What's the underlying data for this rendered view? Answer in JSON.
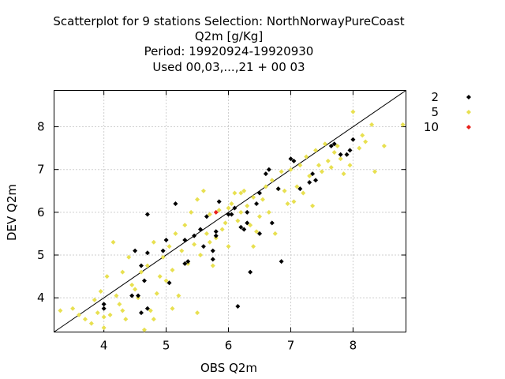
{
  "chart_data": {
    "type": "scatter",
    "title_lines": [
      "Scatterplot for    9 stations Selection: NorthNorwayPureCoast",
      "Q2m [g/Kg]",
      "Period: 19920924-19920930",
      "Used  00,03,...,21  + 00 03"
    ],
    "xlabel": "OBS Q2m",
    "ylabel": "DEV Q2m",
    "xlim": [
      3.2,
      8.85
    ],
    "ylim": [
      3.2,
      8.85
    ],
    "x_ticks": [
      "4",
      "5",
      "6",
      "7",
      "8"
    ],
    "y_ticks": [
      "4",
      "5",
      "6",
      "7",
      "8"
    ],
    "grid": true,
    "legend_position": "right",
    "reference_line": "y = x",
    "series": [
      {
        "name": "5",
        "color": "#e8e050",
        "points": [
          [
            3.3,
            3.7
          ],
          [
            3.5,
            3.75
          ],
          [
            3.6,
            3.6
          ],
          [
            3.7,
            3.5
          ],
          [
            3.8,
            3.4
          ],
          [
            3.85,
            3.95
          ],
          [
            3.9,
            3.65
          ],
          [
            3.95,
            4.15
          ],
          [
            4.0,
            3.3
          ],
          [
            4.0,
            3.55
          ],
          [
            4.05,
            4.5
          ],
          [
            4.1,
            3.6
          ],
          [
            4.15,
            5.3
          ],
          [
            4.2,
            4.05
          ],
          [
            4.25,
            3.85
          ],
          [
            4.3,
            3.7
          ],
          [
            4.35,
            3.5
          ],
          [
            4.4,
            4.95
          ],
          [
            4.45,
            4.3
          ],
          [
            4.5,
            4.2
          ],
          [
            4.55,
            4.0
          ],
          [
            4.6,
            4.6
          ],
          [
            4.65,
            3.25
          ],
          [
            4.7,
            4.75
          ],
          [
            4.75,
            3.7
          ],
          [
            4.8,
            5.3
          ],
          [
            4.85,
            4.1
          ],
          [
            4.9,
            4.5
          ],
          [
            4.95,
            4.95
          ],
          [
            5.0,
            4.4
          ],
          [
            5.05,
            5.2
          ],
          [
            5.1,
            4.65
          ],
          [
            5.15,
            5.5
          ],
          [
            5.2,
            4.05
          ],
          [
            5.25,
            5.1
          ],
          [
            5.3,
            5.7
          ],
          [
            5.35,
            4.8
          ],
          [
            5.4,
            6.0
          ],
          [
            5.45,
            5.25
          ],
          [
            5.5,
            6.3
          ],
          [
            5.55,
            5.0
          ],
          [
            5.6,
            6.5
          ],
          [
            5.65,
            5.5
          ],
          [
            5.7,
            5.95
          ],
          [
            5.75,
            4.75
          ],
          [
            5.8,
            5.4
          ],
          [
            5.85,
            6.05
          ],
          [
            5.9,
            5.6
          ],
          [
            5.95,
            5.75
          ],
          [
            6.0,
            6.1
          ],
          [
            6.05,
            6.2
          ],
          [
            6.1,
            6.45
          ],
          [
            6.15,
            5.8
          ],
          [
            6.2,
            6.0
          ],
          [
            6.25,
            6.5
          ],
          [
            6.3,
            6.15
          ],
          [
            6.35,
            5.7
          ],
          [
            6.4,
            6.35
          ],
          [
            6.45,
            5.55
          ],
          [
            6.5,
            5.9
          ],
          [
            6.55,
            6.3
          ],
          [
            6.6,
            6.6
          ],
          [
            6.65,
            6.0
          ],
          [
            6.7,
            6.75
          ],
          [
            6.75,
            5.5
          ],
          [
            6.8,
            6.55
          ],
          [
            6.85,
            6.95
          ],
          [
            6.9,
            6.5
          ],
          [
            6.95,
            6.2
          ],
          [
            7.0,
            7.0
          ],
          [
            7.05,
            6.25
          ],
          [
            7.1,
            6.6
          ],
          [
            7.15,
            7.1
          ],
          [
            7.2,
            6.45
          ],
          [
            7.25,
            7.3
          ],
          [
            7.3,
            6.85
          ],
          [
            7.35,
            6.15
          ],
          [
            7.4,
            7.45
          ],
          [
            7.45,
            7.1
          ],
          [
            7.5,
            6.95
          ],
          [
            7.55,
            7.6
          ],
          [
            7.6,
            7.2
          ],
          [
            7.65,
            7.05
          ],
          [
            7.7,
            7.4
          ],
          [
            7.75,
            7.55
          ],
          [
            7.8,
            7.25
          ],
          [
            7.85,
            6.9
          ],
          [
            7.9,
            7.35
          ],
          [
            7.95,
            7.1
          ],
          [
            8.0,
            8.35
          ],
          [
            8.1,
            7.5
          ],
          [
            8.15,
            7.8
          ],
          [
            8.2,
            7.65
          ],
          [
            8.3,
            8.05
          ],
          [
            8.35,
            6.95
          ],
          [
            8.5,
            7.55
          ],
          [
            8.8,
            8.05
          ],
          [
            4.3,
            4.6
          ],
          [
            5.1,
            3.75
          ],
          [
            5.5,
            3.65
          ],
          [
            5.7,
            5.3
          ],
          [
            6.0,
            5.2
          ],
          [
            4.8,
            3.5
          ],
          [
            6.2,
            6.45
          ],
          [
            6.4,
            5.2
          ]
        ]
      },
      {
        "name": "2",
        "color": "#000000",
        "points": [
          [
            4.0,
            3.85
          ],
          [
            4.0,
            3.75
          ],
          [
            4.45,
            4.05
          ],
          [
            4.5,
            5.1
          ],
          [
            4.55,
            4.05
          ],
          [
            4.6,
            3.65
          ],
          [
            4.6,
            4.75
          ],
          [
            4.65,
            4.4
          ],
          [
            4.7,
            5.95
          ],
          [
            4.7,
            3.75
          ],
          [
            4.7,
            5.05
          ],
          [
            4.95,
            5.1
          ],
          [
            5.0,
            5.35
          ],
          [
            5.05,
            4.35
          ],
          [
            5.15,
            6.2
          ],
          [
            5.3,
            5.35
          ],
          [
            5.3,
            4.8
          ],
          [
            5.35,
            4.85
          ],
          [
            5.45,
            5.45
          ],
          [
            5.55,
            5.6
          ],
          [
            5.6,
            5.2
          ],
          [
            5.65,
            5.9
          ],
          [
            5.75,
            4.9
          ],
          [
            5.75,
            5.1
          ],
          [
            5.8,
            5.55
          ],
          [
            5.8,
            5.45
          ],
          [
            5.85,
            6.25
          ],
          [
            6.0,
            5.95
          ],
          [
            6.05,
            5.95
          ],
          [
            6.1,
            6.1
          ],
          [
            6.15,
            3.8
          ],
          [
            6.2,
            5.65
          ],
          [
            6.25,
            5.6
          ],
          [
            6.3,
            5.75
          ],
          [
            6.3,
            6.0
          ],
          [
            6.35,
            4.6
          ],
          [
            6.45,
            6.2
          ],
          [
            6.5,
            6.45
          ],
          [
            6.5,
            5.5
          ],
          [
            6.6,
            6.9
          ],
          [
            6.65,
            7.0
          ],
          [
            6.7,
            5.75
          ],
          [
            6.8,
            6.55
          ],
          [
            6.85,
            4.85
          ],
          [
            7.0,
            7.25
          ],
          [
            7.05,
            7.2
          ],
          [
            7.15,
            6.55
          ],
          [
            7.3,
            6.7
          ],
          [
            7.35,
            6.9
          ],
          [
            7.4,
            6.75
          ],
          [
            7.65,
            7.55
          ],
          [
            7.7,
            7.6
          ],
          [
            7.8,
            7.35
          ],
          [
            7.9,
            7.35
          ],
          [
            7.95,
            7.45
          ],
          [
            8.0,
            7.7
          ]
        ]
      },
      {
        "name": "10",
        "color": "#e8211c",
        "points": [
          [
            5.8,
            6.0
          ]
        ]
      }
    ]
  }
}
